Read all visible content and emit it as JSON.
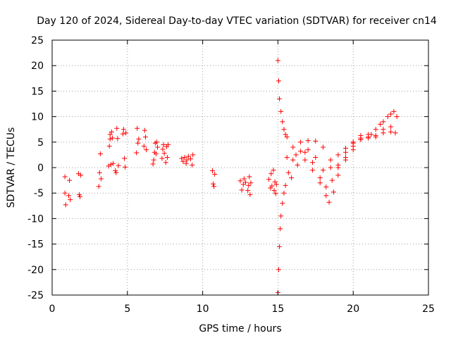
{
  "chart_data": {
    "type": "scatter",
    "title": "Day 120 of 2024, Sidereal Day-to-day VTEC variation (SDTVAR) for receiver cn14",
    "xlabel": "GPS time / hours",
    "ylabel": "SDTVAR / TECUs",
    "xlim": [
      0,
      25
    ],
    "ylim": [
      -25,
      25
    ],
    "xticks": [
      0,
      5,
      10,
      15,
      20,
      25
    ],
    "yticks": [
      -25,
      -20,
      -15,
      -10,
      -5,
      0,
      5,
      10,
      15,
      20,
      25
    ],
    "grid": true,
    "marker": "+",
    "color": "#ff0000",
    "series": [
      {
        "name": "cn14 SDTVAR",
        "points": [
          [
            0.85,
            -1.8
          ],
          [
            0.85,
            -5.0
          ],
          [
            0.9,
            -7.3
          ],
          [
            1.1,
            -5.5
          ],
          [
            1.15,
            -2.5
          ],
          [
            1.2,
            -6.3
          ],
          [
            1.75,
            -1.2
          ],
          [
            1.8,
            -5.3
          ],
          [
            1.85,
            -5.7
          ],
          [
            1.9,
            -1.5
          ],
          [
            3.1,
            -3.7
          ],
          [
            3.15,
            -1.0
          ],
          [
            3.2,
            2.7
          ],
          [
            3.25,
            -2.2
          ],
          [
            3.75,
            0.3
          ],
          [
            3.8,
            4.2
          ],
          [
            3.85,
            5.6
          ],
          [
            3.85,
            6.5
          ],
          [
            3.9,
            0.6
          ],
          [
            3.95,
            7.0
          ],
          [
            4.0,
            5.8
          ],
          [
            4.05,
            0.8
          ],
          [
            4.2,
            -0.6
          ],
          [
            4.25,
            -1.0
          ],
          [
            4.3,
            7.7
          ],
          [
            4.35,
            5.7
          ],
          [
            4.4,
            0.4
          ],
          [
            4.7,
            6.6
          ],
          [
            4.75,
            7.5
          ],
          [
            4.8,
            1.8
          ],
          [
            4.85,
            0.1
          ],
          [
            4.9,
            6.8
          ],
          [
            5.6,
            2.9
          ],
          [
            5.65,
            7.7
          ],
          [
            5.7,
            4.8
          ],
          [
            5.75,
            5.6
          ],
          [
            6.1,
            4.2
          ],
          [
            6.15,
            7.3
          ],
          [
            6.2,
            6.0
          ],
          [
            6.25,
            3.5
          ],
          [
            6.7,
            0.7
          ],
          [
            6.75,
            1.5
          ],
          [
            6.8,
            3.0
          ],
          [
            6.85,
            4.8
          ],
          [
            6.9,
            2.7
          ],
          [
            6.95,
            5.0
          ],
          [
            7.0,
            4.0
          ],
          [
            7.3,
            1.8
          ],
          [
            7.35,
            3.6
          ],
          [
            7.4,
            4.5
          ],
          [
            7.45,
            2.8
          ],
          [
            7.55,
            1.0
          ],
          [
            7.6,
            4.1
          ],
          [
            7.65,
            2.0
          ],
          [
            7.7,
            4.5
          ],
          [
            8.6,
            1.8
          ],
          [
            8.7,
            1.2
          ],
          [
            8.8,
            2.0
          ],
          [
            8.9,
            0.8
          ],
          [
            8.95,
            1.5
          ],
          [
            9.05,
            2.2
          ],
          [
            9.2,
            1.7
          ],
          [
            9.3,
            0.5
          ],
          [
            9.35,
            2.5
          ],
          [
            10.65,
            -0.6
          ],
          [
            10.7,
            -3.2
          ],
          [
            10.75,
            -3.7
          ],
          [
            10.8,
            -1.3
          ],
          [
            12.5,
            -2.6
          ],
          [
            12.6,
            -4.4
          ],
          [
            12.7,
            -3.3
          ],
          [
            12.75,
            -2.2
          ],
          [
            12.85,
            -2.9
          ],
          [
            13.0,
            -4.5
          ],
          [
            13.05,
            -3.5
          ],
          [
            13.1,
            -1.8
          ],
          [
            13.15,
            -5.3
          ],
          [
            13.2,
            -3.0
          ],
          [
            14.4,
            -2.3
          ],
          [
            14.5,
            -4.0
          ],
          [
            14.55,
            -1.2
          ],
          [
            14.6,
            -3.6
          ],
          [
            14.7,
            -0.5
          ],
          [
            14.75,
            -4.5
          ],
          [
            14.8,
            -2.8
          ],
          [
            14.85,
            -5.1
          ],
          [
            14.9,
            -3.3
          ],
          [
            15.0,
            21.0
          ],
          [
            15.05,
            17.0
          ],
          [
            15.1,
            13.5
          ],
          [
            15.2,
            11.0
          ],
          [
            15.3,
            9.0
          ],
          [
            15.4,
            7.5
          ],
          [
            15.5,
            6.5
          ],
          [
            15.6,
            6.0
          ],
          [
            15.0,
            -24.5
          ],
          [
            15.05,
            -20.0
          ],
          [
            15.1,
            -15.5
          ],
          [
            15.15,
            -12.0
          ],
          [
            15.2,
            -9.5
          ],
          [
            15.3,
            -7.0
          ],
          [
            15.4,
            -5.0
          ],
          [
            15.5,
            -3.5
          ],
          [
            15.7,
            -1.0
          ],
          [
            16.0,
            1.5
          ],
          [
            16.5,
            3.2
          ],
          [
            17.0,
            3.5
          ],
          [
            17.5,
            2.0
          ],
          [
            18.0,
            -0.5
          ],
          [
            18.5,
            0.0
          ],
          [
            19.0,
            2.5
          ],
          [
            19.5,
            3.8
          ],
          [
            20.0,
            5.0
          ],
          [
            20.5,
            6.3
          ],
          [
            21.0,
            5.8
          ],
          [
            21.5,
            6.0
          ],
          [
            22.0,
            7.5
          ],
          [
            22.5,
            8.0
          ],
          [
            22.8,
            6.8
          ],
          [
            15.9,
            -2.0
          ],
          [
            16.3,
            0.5
          ],
          [
            16.8,
            1.5
          ],
          [
            17.3,
            -0.5
          ],
          [
            17.8,
            -3.0
          ],
          [
            18.2,
            -5.5
          ],
          [
            18.4,
            -6.8
          ],
          [
            18.7,
            -4.8
          ],
          [
            19.0,
            -1.5
          ],
          [
            19.5,
            2.0
          ],
          [
            20.0,
            4.2
          ],
          [
            20.5,
            5.5
          ],
          [
            21.0,
            6.0
          ],
          [
            21.5,
            6.3
          ],
          [
            22.0,
            6.8
          ],
          [
            22.5,
            7.0
          ],
          [
            15.6,
            2.0
          ],
          [
            16.0,
            4.0
          ],
          [
            16.5,
            5.0
          ],
          [
            17.0,
            5.3
          ],
          [
            17.5,
            5.2
          ],
          [
            18.0,
            4.0
          ],
          [
            18.5,
            1.5
          ],
          [
            19.0,
            0.0
          ],
          [
            19.5,
            1.5
          ],
          [
            20.0,
            3.5
          ],
          [
            20.5,
            5.8
          ],
          [
            21.0,
            6.5
          ],
          [
            21.5,
            7.5
          ],
          [
            22.0,
            9.0
          ],
          [
            22.5,
            10.5
          ],
          [
            22.9,
            10.0
          ],
          [
            16.2,
            2.5
          ],
          [
            16.8,
            3.0
          ],
          [
            17.3,
            1.0
          ],
          [
            17.8,
            -2.0
          ],
          [
            18.2,
            -3.8
          ],
          [
            18.6,
            -2.5
          ],
          [
            19.0,
            0.5
          ],
          [
            19.5,
            3.0
          ],
          [
            20.0,
            4.8
          ],
          [
            20.5,
            5.5
          ],
          [
            21.2,
            6.5
          ],
          [
            21.8,
            8.5
          ],
          [
            22.3,
            10.0
          ],
          [
            22.7,
            11.0
          ]
        ]
      }
    ]
  }
}
